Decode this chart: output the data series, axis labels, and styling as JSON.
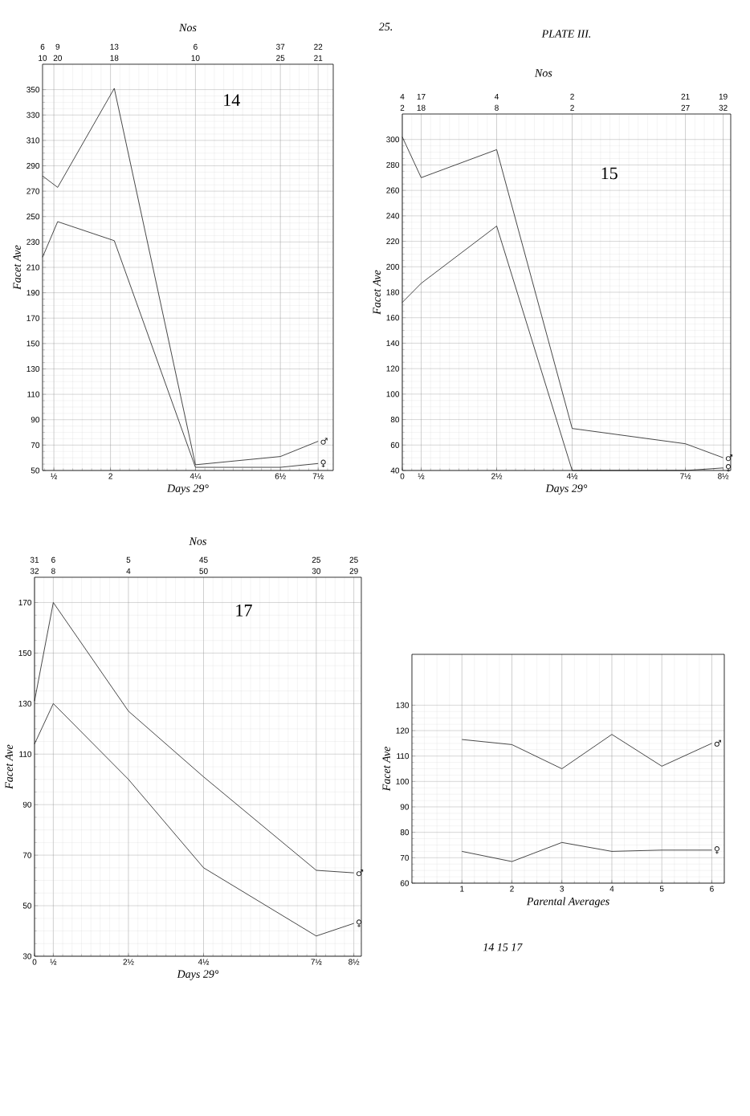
{
  "chart_data": [
    {
      "type": "line",
      "title": "14",
      "xlabel": "Days 29°",
      "ylabel": "Facet Ave",
      "grid": true,
      "x": [
        0.2,
        0.6,
        2.1,
        4.25,
        6.5,
        7.5
      ],
      "series": [
        {
          "name": "♂",
          "color": "#1a1a1a",
          "values": [
            282,
            273,
            351,
            54.5,
            61,
            73
          ]
        },
        {
          "name": "♀",
          "color": "#1a1a1a",
          "values": [
            218,
            246,
            231,
            52.5,
            52.5,
            55.5
          ]
        }
      ],
      "xlim": [
        0.2,
        7.9
      ],
      "ylim": [
        50,
        370
      ],
      "xticks": [
        {
          "value": 0.5,
          "label": "½"
        },
        2,
        {
          "value": 4.25,
          "label": "4¼"
        },
        {
          "value": 6.5,
          "label": "6½"
        },
        {
          "value": 7.5,
          "label": "7½"
        }
      ],
      "yticks": [
        50,
        70,
        90,
        110,
        130,
        150,
        170,
        190,
        210,
        230,
        250,
        270,
        290,
        310,
        330,
        350
      ],
      "annotations": [
        "Nos",
        "6",
        "9",
        "13",
        "6",
        "37",
        "22",
        "10",
        "20",
        "18",
        "10",
        "25",
        "21"
      ]
    },
    {
      "type": "line",
      "title": "15",
      "xlabel": "Days 29°",
      "ylabel": "Facet Ave",
      "grid": true,
      "x": [
        0,
        0.5,
        2.5,
        4.5,
        7.5,
        8.5
      ],
      "series": [
        {
          "name": "♂",
          "color": "#1a1a1a",
          "values": [
            302,
            270,
            292,
            73,
            61,
            50
          ]
        },
        {
          "name": "♀",
          "color": "#1a1a1a",
          "values": [
            172,
            187,
            232,
            40,
            40,
            42
          ]
        }
      ],
      "xlim": [
        0,
        8.7
      ],
      "ylim": [
        40,
        320
      ],
      "xticks": [
        0,
        {
          "value": 0.5,
          "label": "½"
        },
        {
          "value": 2.5,
          "label": "2½"
        },
        {
          "value": 4.5,
          "label": "4½"
        },
        {
          "value": 7.5,
          "label": "7½"
        },
        {
          "value": 8.5,
          "label": "8½"
        }
      ],
      "yticks": [
        40,
        60,
        80,
        100,
        120,
        140,
        160,
        180,
        200,
        220,
        240,
        260,
        280,
        300
      ],
      "annotations": [
        "25.",
        "PLATE III.",
        "Nos",
        "4",
        "17",
        "4",
        "2",
        "21",
        "19",
        "2",
        "18",
        "8",
        "2",
        "27",
        "32"
      ]
    },
    {
      "type": "line",
      "title": "17",
      "xlabel": "Days 29°",
      "ylabel": "Facet Ave",
      "grid": true,
      "x": [
        0,
        0.5,
        2.5,
        4.5,
        7.5,
        8.5
      ],
      "series": [
        {
          "name": "♂",
          "color": "#1a1a1a",
          "values": [
            131,
            170,
            127,
            101,
            64,
            63
          ]
        },
        {
          "name": "♀",
          "color": "#1a1a1a",
          "values": [
            114,
            130,
            100,
            65,
            38,
            43
          ]
        }
      ],
      "xlim": [
        0,
        8.7
      ],
      "ylim": [
        30,
        180
      ],
      "xticks": [
        0,
        {
          "value": 0.5,
          "label": "½"
        },
        {
          "value": 2.5,
          "label": "2½"
        },
        {
          "value": 4.5,
          "label": "4½"
        },
        {
          "value": 7.5,
          "label": "7½"
        },
        {
          "value": 8.5,
          "label": "8½"
        }
      ],
      "yticks": [
        30,
        50,
        70,
        90,
        110,
        130,
        150,
        170
      ],
      "annotations": [
        "Nos",
        "31",
        "6",
        "5",
        "45",
        "25",
        "25",
        "32",
        "8",
        "4",
        "50",
        "30",
        "29"
      ]
    },
    {
      "type": "line",
      "xlabel": "Parental Averages",
      "ylabel": "Facet Ave",
      "grid": true,
      "annotations": [
        "14 15 17"
      ],
      "x": [
        1,
        2,
        3,
        4,
        5,
        6
      ],
      "series": [
        {
          "name": "♂",
          "color": "#1a1a1a",
          "values": [
            116.5,
            114.5,
            105,
            118.5,
            106,
            115
          ]
        },
        {
          "name": "♀",
          "color": "#1a1a1a",
          "values": [
            72.5,
            68.5,
            76,
            72.5,
            73,
            73
          ]
        }
      ],
      "xlim": [
        0,
        6.25
      ],
      "ylim": [
        60,
        150
      ],
      "xticks": [
        1,
        2,
        3,
        4,
        5,
        6
      ],
      "yticks": [
        60,
        70,
        80,
        90,
        100,
        110,
        120,
        130
      ]
    }
  ]
}
